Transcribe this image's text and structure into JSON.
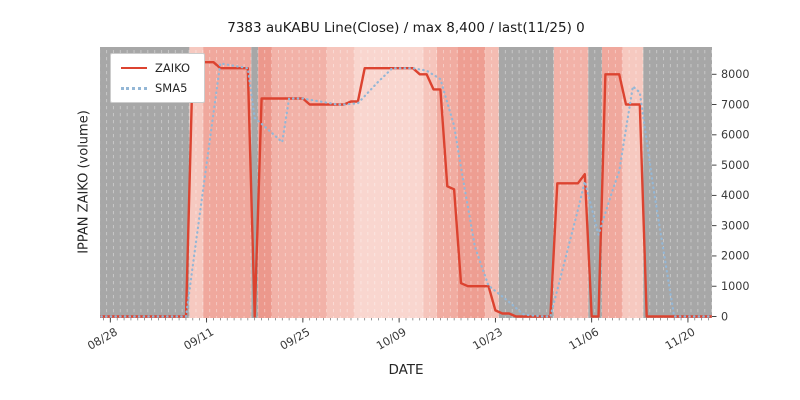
{
  "chart_data": {
    "type": "line",
    "title": "7383 auKABU Line(Close) / max 8,400 / last(11/25) 0",
    "xlabel": "DATE",
    "ylabel": "IPPAN ZAIKO (volume)",
    "legend_position": "upper left",
    "grid": false,
    "x_start_date": "08/26",
    "x_index_unit": "days",
    "x_domain": [
      0.5,
      89.5
    ],
    "ylim": [
      0,
      8950
    ],
    "y_ticks": [
      0,
      1000,
      2000,
      3000,
      4000,
      5000,
      6000,
      7000,
      8000
    ],
    "x_ticks": [
      {
        "day": 2,
        "label": "08/28"
      },
      {
        "day": 16,
        "label": "09/11"
      },
      {
        "day": 30,
        "label": "09/25"
      },
      {
        "day": 44,
        "label": "10/09"
      },
      {
        "day": 58,
        "label": "10/23"
      },
      {
        "day": 72,
        "label": "11/06"
      },
      {
        "day": 86,
        "label": "11/20"
      }
    ],
    "series": [
      {
        "name": "ZAIKO",
        "color": "#dc4330",
        "style": "solid",
        "values": [
          0,
          0,
          0,
          0,
          0,
          0,
          0,
          0,
          0,
          0,
          0,
          0,
          0,
          0,
          8400,
          8400,
          8400,
          8400,
          8200,
          8200,
          8200,
          8200,
          8200,
          0,
          7200,
          7200,
          7200,
          7200,
          7200,
          7200,
          7200,
          7000,
          7000,
          7000,
          7000,
          7000,
          7000,
          7100,
          7100,
          8200,
          8200,
          8200,
          8200,
          8200,
          8200,
          8200,
          8200,
          8000,
          8000,
          7500,
          7500,
          4300,
          4200,
          1100,
          1000,
          1000,
          1000,
          1000,
          200,
          100,
          100,
          0,
          0,
          0,
          0,
          0,
          0,
          4400,
          4400,
          4400,
          4400,
          4700,
          0,
          0,
          8000,
          8000,
          8000,
          7000,
          7000,
          7000,
          0,
          0,
          0,
          0,
          0,
          0,
          0,
          0,
          0,
          0,
          0,
          0
        ]
      },
      {
        "name": "SMA5",
        "color": "#94b7d6",
        "style": "dotted",
        "derived_from": "ZAIKO",
        "window": 5
      }
    ],
    "background_bands": [
      {
        "from": 0.5,
        "to": 13.5,
        "color": "#a7a7a7"
      },
      {
        "from": 13.5,
        "to": 15.5,
        "color": "#f6c9c0"
      },
      {
        "from": 15.5,
        "to": 22.5,
        "color": "#f0a89d"
      },
      {
        "from": 22.5,
        "to": 23.5,
        "color": "#a7a7a7"
      },
      {
        "from": 23.5,
        "to": 25.5,
        "color": "#ec988c"
      },
      {
        "from": 25.5,
        "to": 33.5,
        "color": "#f2b2a8"
      },
      {
        "from": 33.5,
        "to": 37.5,
        "color": "#f6c5bc"
      },
      {
        "from": 37.5,
        "to": 47.5,
        "color": "#f9d6cf"
      },
      {
        "from": 47.5,
        "to": 49.5,
        "color": "#f6c5bc"
      },
      {
        "from": 49.5,
        "to": 52.5,
        "color": "#f1aca1"
      },
      {
        "from": 52.5,
        "to": 56.5,
        "color": "#ee9e92"
      },
      {
        "from": 56.5,
        "to": 58.5,
        "color": "#f4bcb2"
      },
      {
        "from": 58.5,
        "to": 66.5,
        "color": "#a7a7a7"
      },
      {
        "from": 66.5,
        "to": 71.5,
        "color": "#f2b2a8"
      },
      {
        "from": 71.5,
        "to": 73.5,
        "color": "#a7a7a7"
      },
      {
        "from": 73.5,
        "to": 76.5,
        "color": "#f0a89d"
      },
      {
        "from": 76.5,
        "to": 79.5,
        "color": "#f6c9c0"
      },
      {
        "from": 79.5,
        "to": 89.5,
        "color": "#a7a7a7"
      }
    ],
    "colors": {
      "figure_background": "#ffffff",
      "tick_text": "#3a3a3a",
      "band_dash_overlay": "#ffffff"
    }
  }
}
